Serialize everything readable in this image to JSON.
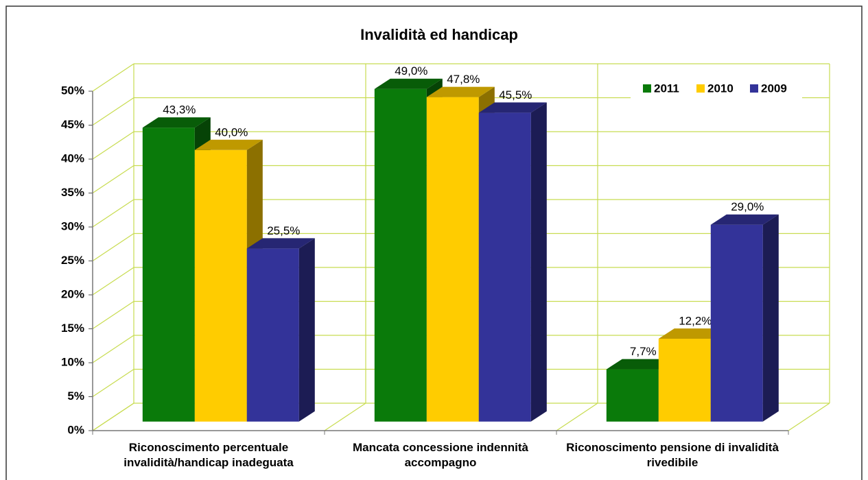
{
  "chart_data": {
    "type": "bar3d",
    "title": "Invalidità ed handicap",
    "categories": [
      "Riconoscimento percentuale invalidità/handicap inadeguata",
      "Mancata concessione indennità accompagno",
      "Riconoscimento pensione di invalidità rivedibile"
    ],
    "series": [
      {
        "name": "2011",
        "color": "#0a7a0a",
        "values": [
          43.3,
          49.0,
          7.7
        ],
        "value_labels": [
          "43,3%",
          "49,0%",
          "7,7%"
        ]
      },
      {
        "name": "2010",
        "color": "#ffcc00",
        "values": [
          40.0,
          47.8,
          12.2
        ],
        "value_labels": [
          "40,0%",
          "47,8%",
          "12,2%"
        ]
      },
      {
        "name": "2009",
        "color": "#333399",
        "values": [
          25.5,
          45.5,
          29.0
        ],
        "value_labels": [
          "25,5%",
          "45,5%",
          "29,0%"
        ]
      }
    ],
    "ylim": [
      0,
      50
    ],
    "yticks": [
      {
        "value": 0,
        "label": "0%"
      },
      {
        "value": 5,
        "label": "5%"
      },
      {
        "value": 10,
        "label": "10%"
      },
      {
        "value": 15,
        "label": "15%"
      },
      {
        "value": 20,
        "label": "20%"
      },
      {
        "value": 25,
        "label": "25%"
      },
      {
        "value": 30,
        "label": "30%"
      },
      {
        "value": 35,
        "label": "35%"
      },
      {
        "value": 40,
        "label": "40%"
      },
      {
        "value": 45,
        "label": "45%"
      },
      {
        "value": 50,
        "label": "50%"
      }
    ],
    "grid": true,
    "legend": "upper right"
  }
}
